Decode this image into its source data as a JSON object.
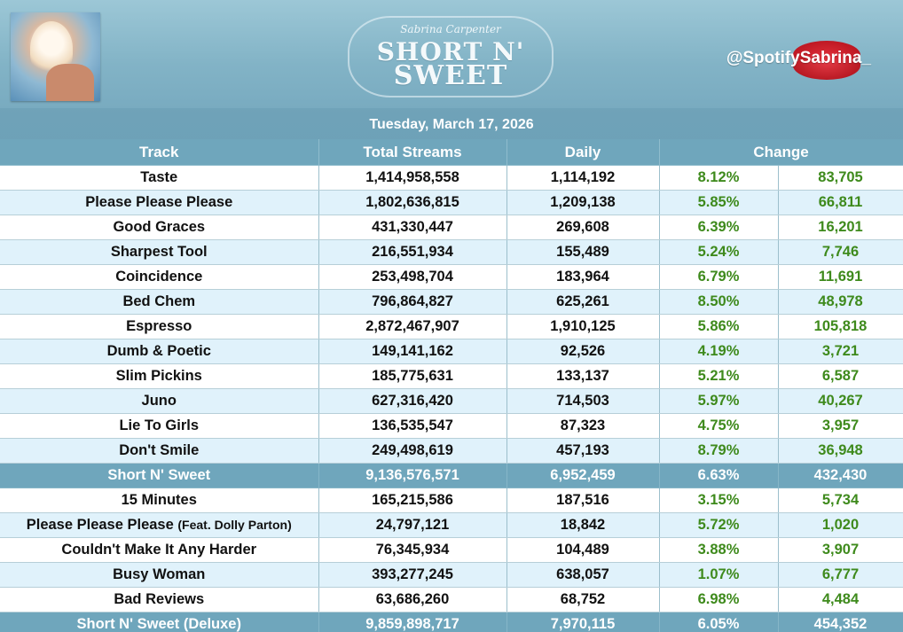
{
  "header": {
    "logo_script": "Sabrina Carpenter",
    "logo_line1": "SHORT N'",
    "logo_line2": "SWEET",
    "handle": "@SpotifySabrina_"
  },
  "date": "Tuesday, March 17, 2026",
  "columns": {
    "track": "Track",
    "total": "Total Streams",
    "daily": "Daily",
    "change": "Change"
  },
  "colors": {
    "header_blue": "#6fa6bc",
    "row_blue": "#e0f2fb",
    "positive_green": "#3e8a1c"
  },
  "section1": [
    {
      "track": "Taste",
      "total": "1,414,958,558",
      "daily": "1,114,192",
      "pct": "8.12%",
      "change": "83,705"
    },
    {
      "track": "Please Please Please",
      "total": "1,802,636,815",
      "daily": "1,209,138",
      "pct": "5.85%",
      "change": "66,811"
    },
    {
      "track": "Good Graces",
      "total": "431,330,447",
      "daily": "269,608",
      "pct": "6.39%",
      "change": "16,201"
    },
    {
      "track": "Sharpest Tool",
      "total": "216,551,934",
      "daily": "155,489",
      "pct": "5.24%",
      "change": "7,746"
    },
    {
      "track": "Coincidence",
      "total": "253,498,704",
      "daily": "183,964",
      "pct": "6.79%",
      "change": "11,691"
    },
    {
      "track": "Bed Chem",
      "total": "796,864,827",
      "daily": "625,261",
      "pct": "8.50%",
      "change": "48,978"
    },
    {
      "track": "Espresso",
      "total": "2,872,467,907",
      "daily": "1,910,125",
      "pct": "5.86%",
      "change": "105,818"
    },
    {
      "track": "Dumb & Poetic",
      "total": "149,141,162",
      "daily": "92,526",
      "pct": "4.19%",
      "change": "3,721"
    },
    {
      "track": "Slim Pickins",
      "total": "185,775,631",
      "daily": "133,137",
      "pct": "5.21%",
      "change": "6,587"
    },
    {
      "track": "Juno",
      "total": "627,316,420",
      "daily": "714,503",
      "pct": "5.97%",
      "change": "40,267"
    },
    {
      "track": "Lie To Girls",
      "total": "136,535,547",
      "daily": "87,323",
      "pct": "4.75%",
      "change": "3,957"
    },
    {
      "track": "Don't Smile",
      "total": "249,498,619",
      "daily": "457,193",
      "pct": "8.79%",
      "change": "36,948"
    }
  ],
  "total1": {
    "track": "Short N' Sweet",
    "total": "9,136,576,571",
    "daily": "6,952,459",
    "pct": "6.63%",
    "change": "432,430"
  },
  "section2": [
    {
      "track": "15 Minutes",
      "total": "165,215,586",
      "daily": "187,516",
      "pct": "3.15%",
      "change": "5,734"
    },
    {
      "track": "Please Please Please",
      "feat": "(Feat. Dolly Parton)",
      "total": "24,797,121",
      "daily": "18,842",
      "pct": "5.72%",
      "change": "1,020"
    },
    {
      "track": "Couldn't Make It Any Harder",
      "total": "76,345,934",
      "daily": "104,489",
      "pct": "3.88%",
      "change": "3,907"
    },
    {
      "track": "Busy Woman",
      "total": "393,277,245",
      "daily": "638,057",
      "pct": "1.07%",
      "change": "6,777"
    },
    {
      "track": "Bad Reviews",
      "total": "63,686,260",
      "daily": "68,752",
      "pct": "6.98%",
      "change": "4,484"
    }
  ],
  "total2": {
    "track": "Short N' Sweet (Deluxe)",
    "total": "9,859,898,717",
    "daily": "7,970,115",
    "pct": "6.05%",
    "change": "454,352"
  }
}
